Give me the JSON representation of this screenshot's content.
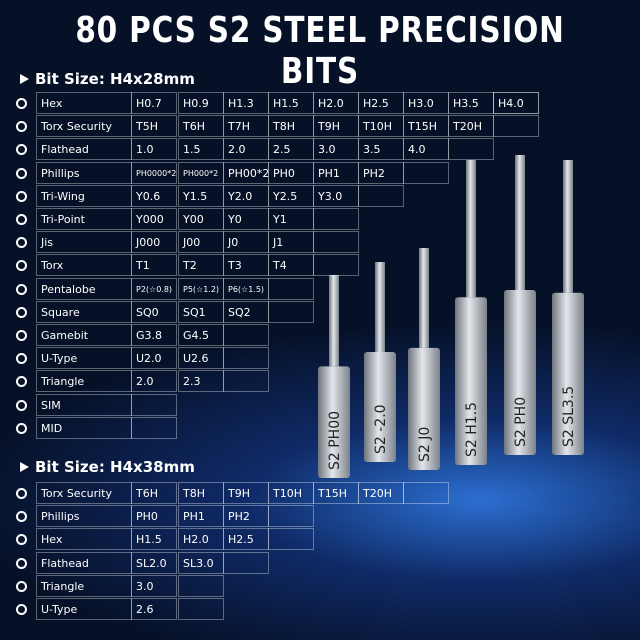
{
  "title": "80 PCS S2 STEEL PRECISION BITS",
  "sections": [
    {
      "heading": "Bit Size: H4x28mm",
      "rows": [
        {
          "name": "Hex",
          "values": [
            "H0.7",
            "H0.9",
            "H1.3",
            "H1.5",
            "H2.0",
            "H2.5",
            "H3.0",
            "H3.5",
            "H4.0"
          ]
        },
        {
          "name": "Torx Security",
          "values": [
            "T5H",
            "T6H",
            "T7H",
            "T8H",
            "T9H",
            "T10H",
            "T15H",
            "T20H"
          ]
        },
        {
          "name": "Flathead",
          "values": [
            "1.0",
            "1.5",
            "2.0",
            "2.5",
            "3.0",
            "3.5",
            "4.0"
          ]
        },
        {
          "name": "Phillips",
          "values": [
            "PH0000*2",
            "PH000*2",
            "PH00*2",
            "PH0",
            "PH1",
            "PH2"
          ]
        },
        {
          "name": "Tri-Wing",
          "values": [
            "Y0.6",
            "Y1.5",
            "Y2.0",
            "Y2.5",
            "Y3.0"
          ]
        },
        {
          "name": "Tri-Point",
          "values": [
            "Y000",
            "Y00",
            "Y0",
            "Y1"
          ]
        },
        {
          "name": "Jis",
          "values": [
            "J000",
            "J00",
            "J0",
            "J1"
          ]
        },
        {
          "name": "Torx",
          "values": [
            "T1",
            "T2",
            "T3",
            "T4"
          ]
        },
        {
          "name": "Pentalobe",
          "values": [
            "P2(☆0.8)",
            "P5(☆1.2)",
            "P6(☆1.5)"
          ]
        },
        {
          "name": "Square",
          "values": [
            "SQ0",
            "SQ1",
            "SQ2"
          ]
        },
        {
          "name": "Gamebit",
          "values": [
            "G3.8",
            "G4.5"
          ]
        },
        {
          "name": "U-Type",
          "values": [
            "U2.0",
            "U2.6"
          ]
        },
        {
          "name": "Triangle",
          "values": [
            "2.0",
            "2.3"
          ]
        },
        {
          "name": "SIM",
          "values": []
        },
        {
          "name": "MID",
          "values": []
        }
      ]
    },
    {
      "heading": "Bit Size: H4x38mm",
      "rows": [
        {
          "name": "Torx Security",
          "values": [
            "T6H",
            "T8H",
            "T9H",
            "T10H",
            "T15H",
            "T20H"
          ]
        },
        {
          "name": "Phillips",
          "values": [
            "PH0",
            "PH1",
            "PH2"
          ]
        },
        {
          "name": "Hex",
          "values": [
            "H1.5",
            "H2.0",
            "H2.5"
          ]
        },
        {
          "name": "Flathead",
          "values": [
            "SL2.0",
            "SL3.0"
          ]
        },
        {
          "name": "Triangle",
          "values": [
            "3.0"
          ]
        },
        {
          "name": "U-Type",
          "values": [
            "2.6"
          ]
        }
      ]
    }
  ],
  "bits": [
    "S2 PH00",
    "S2 -2.0",
    "S2 J0",
    "S2 H1.5",
    "S2 PH0",
    "S2 SL3.5"
  ]
}
